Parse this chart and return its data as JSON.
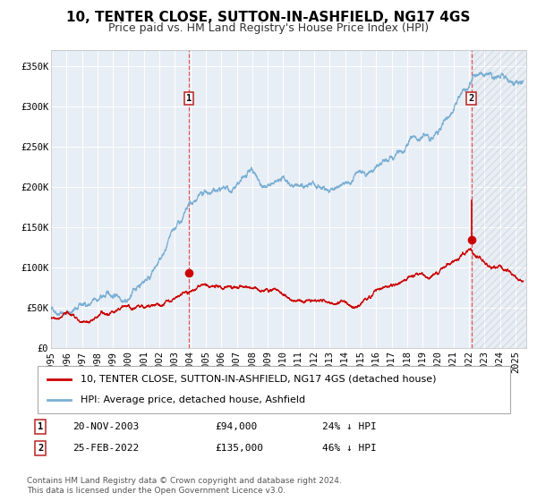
{
  "title": "10, TENTER CLOSE, SUTTON-IN-ASHFIELD, NG17 4GS",
  "subtitle": "Price paid vs. HM Land Registry's House Price Index (HPI)",
  "legend_entries": [
    "10, TENTER CLOSE, SUTTON-IN-ASHFIELD, NG17 4GS (detached house)",
    "HPI: Average price, detached house, Ashfield"
  ],
  "transaction1": {
    "label": "1",
    "date": "20-NOV-2003",
    "price": "£94,000",
    "pct": "24% ↓ HPI",
    "x_year": 2003.9
  },
  "transaction2": {
    "label": "2",
    "date": "25-FEB-2022",
    "price": "£135,000",
    "pct": "46% ↓ HPI",
    "x_year": 2022.15
  },
  "hpi_line_color": "#7BAFD4",
  "price_line_color": "#CC0000",
  "marker_color": "#CC0000",
  "dashed_line_color": "#E05555",
  "bg_chart_color": "#E8EEF5",
  "grid_color": "#FFFFFF",
  "ylim": [
    0,
    370000
  ],
  "yticks": [
    0,
    50000,
    100000,
    150000,
    200000,
    250000,
    300000,
    350000
  ],
  "ytick_labels": [
    "£0",
    "£50K",
    "£100K",
    "£150K",
    "£200K",
    "£250K",
    "£300K",
    "£350K"
  ],
  "xlim_start": 1995.0,
  "xlim_end": 2025.7,
  "xtick_years": [
    1995,
    1996,
    1997,
    1998,
    1999,
    2000,
    2001,
    2002,
    2003,
    2004,
    2005,
    2006,
    2007,
    2008,
    2009,
    2010,
    2011,
    2012,
    2013,
    2014,
    2015,
    2016,
    2017,
    2018,
    2019,
    2020,
    2021,
    2022,
    2023,
    2024,
    2025
  ],
  "footnote": "Contains HM Land Registry data © Crown copyright and database right 2024.\nThis data is licensed under the Open Government Licence v3.0.",
  "title_fontsize": 11,
  "subtitle_fontsize": 9,
  "axis_fontsize": 7.5,
  "legend_fontsize": 8,
  "footnote_fontsize": 6.5
}
